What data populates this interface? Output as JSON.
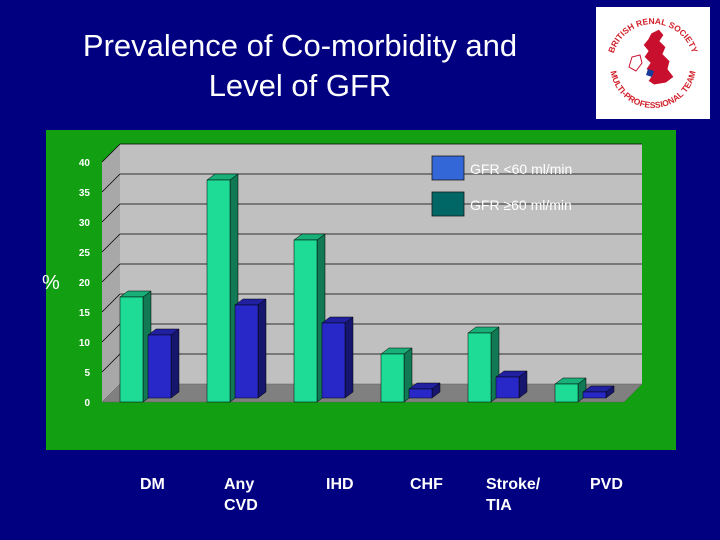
{
  "slide": {
    "title_line1": "Prevalence of Co-morbidity and",
    "title_line2": "Level of GFR",
    "logo": {
      "text_top": "BRITISH RENAL SOCIETY",
      "text_bottom": "MULTI-PROFESSIONAL TEAM"
    }
  },
  "chart_data": {
    "type": "bar",
    "categories": [
      "DM",
      "Any CVD",
      "IHD",
      "CHF",
      "Stroke/ TIA",
      "PVD"
    ],
    "category_display": [
      "DM",
      "Any\nCVD",
      "IHD",
      "CHF",
      "Stroke/\nTIA",
      "PVD"
    ],
    "series": [
      {
        "name": "GFR <60 ml/min",
        "values": [
          17.5,
          37,
          27,
          8,
          11.5,
          3
        ]
      },
      {
        "name": "GFR ≥60 ml/min",
        "values": [
          10.5,
          15.5,
          12.5,
          1.5,
          3.5,
          1
        ]
      }
    ],
    "ylabel": "%",
    "ylim": [
      0,
      40
    ],
    "yticks": [
      "0",
      "5",
      "10",
      "15",
      "20",
      "25",
      "30",
      "35",
      "40"
    ],
    "legend_placement": "top-right",
    "grid": true,
    "colors": {
      "series1": "#1edc96",
      "series2": "#2828c8",
      "legend1": "#3366d6",
      "legend2": "#006666",
      "wall": "#c0c0c0",
      "floor": "#808080",
      "panel": "#12a012",
      "background": "#000080"
    }
  }
}
